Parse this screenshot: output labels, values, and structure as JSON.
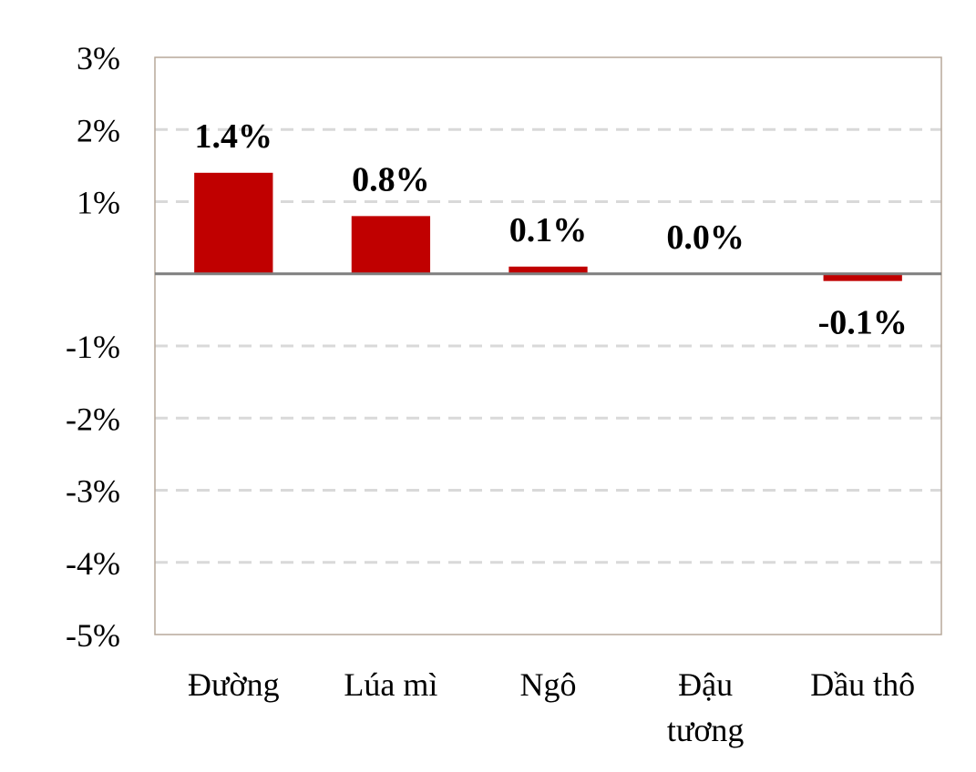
{
  "chart_data": {
    "type": "bar",
    "title": "",
    "xlabel": "",
    "ylabel": "",
    "categories": [
      [
        "Đường"
      ],
      [
        "Lúa mì"
      ],
      [
        "Ngô"
      ],
      [
        "Đậu",
        "tương"
      ],
      [
        "Dầu thô"
      ]
    ],
    "values": [
      1.4,
      0.8,
      0.1,
      0.0,
      -0.1
    ],
    "data_labels": [
      "1.4%",
      "0.8%",
      "0.1%",
      "0.0%",
      "-0.1%"
    ],
    "y_ticks": [
      3,
      2,
      1,
      0,
      -1,
      -2,
      -3,
      -4,
      -5
    ],
    "y_tick_labels": [
      "3%",
      "2%",
      "1%",
      "",
      "-1%",
      "-2%",
      "-3%",
      "-4%",
      "-5%"
    ],
    "ylim": [
      -5,
      3
    ],
    "grid": true,
    "legend": "none",
    "colors": {
      "bar": "#c00000",
      "grid": "#d9d9d9",
      "axis": "#7f7f7f",
      "frame": "#b7a89a"
    }
  }
}
